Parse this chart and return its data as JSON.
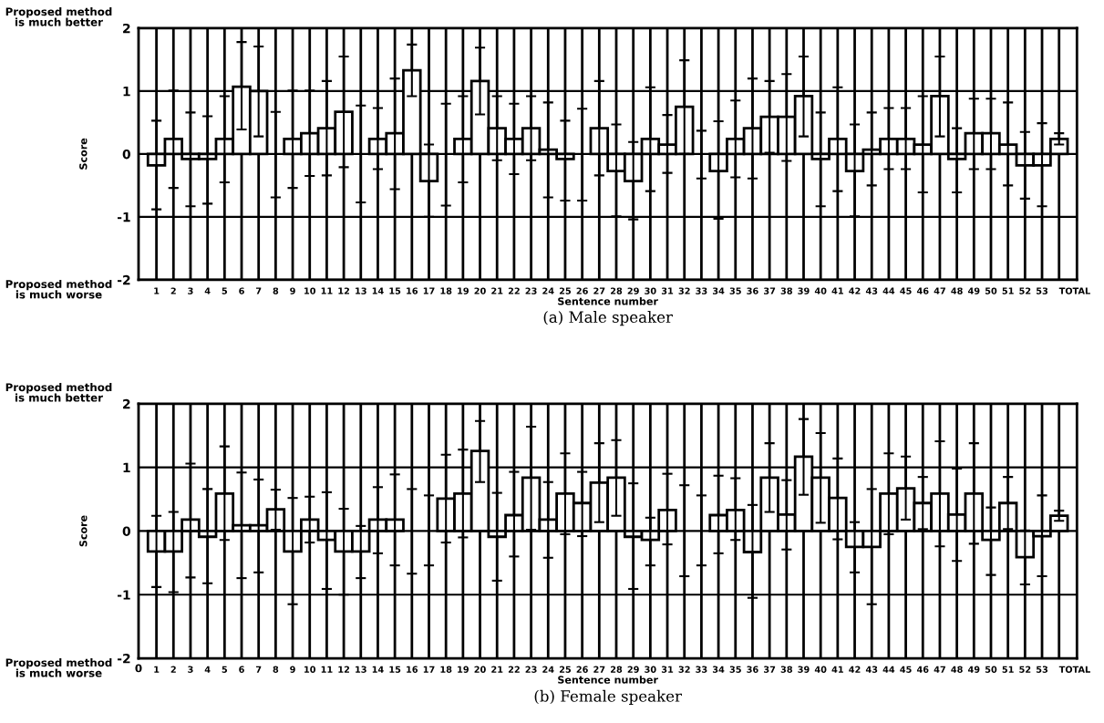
{
  "chart_data": [
    {
      "type": "bar",
      "title": "(a) Male speaker",
      "xlabel": "Sentence number",
      "ylabel": "Score",
      "categories": [
        "1",
        "2",
        "3",
        "4",
        "5",
        "6",
        "7",
        "8",
        "9",
        "10",
        "11",
        "12",
        "13",
        "14",
        "15",
        "16",
        "17",
        "18",
        "19",
        "20",
        "21",
        "22",
        "23",
        "24",
        "25",
        "26",
        "27",
        "28",
        "29",
        "30",
        "31",
        "32",
        "33",
        "34",
        "35",
        "36",
        "37",
        "38",
        "39",
        "40",
        "41",
        "42",
        "43",
        "44",
        "45",
        "46",
        "47",
        "48",
        "49",
        "50",
        "51",
        "52",
        "53",
        "TOTAL"
      ],
      "values": [
        -0.18,
        0.24,
        -0.08,
        -0.08,
        0.24,
        1.07,
        1.0,
        0,
        0.24,
        0.33,
        0.41,
        0.67,
        0,
        0.24,
        0.33,
        1.33,
        -0.43,
        0,
        0.24,
        1.16,
        0.41,
        0.24,
        0.41,
        0.07,
        -0.08,
        0,
        0.41,
        -0.27,
        -0.43,
        0.24,
        0.15,
        0.75,
        0,
        -0.27,
        0.24,
        0.41,
        0.59,
        0.59,
        0.92,
        -0.08,
        0.24,
        -0.27,
        0.07,
        0.24,
        0.24,
        0.15,
        0.92,
        -0.08,
        0.33,
        0.33,
        0.15,
        -0.18,
        -0.18,
        0.24
      ],
      "errors": [
        [
          -0.88,
          0.53
        ],
        [
          -0.54,
          1.01
        ],
        [
          -0.83,
          0.66
        ],
        [
          -0.79,
          0.6
        ],
        [
          -0.45,
          0.92
        ],
        [
          0.39,
          1.78
        ],
        [
          0.28,
          1.71
        ],
        [
          -0.69,
          0.67
        ],
        [
          -0.54,
          1.01
        ],
        [
          -0.35,
          1.01
        ],
        [
          -0.34,
          1.16
        ],
        [
          -0.21,
          1.55
        ],
        [
          -0.77,
          0.77
        ],
        [
          -0.24,
          0.73
        ],
        [
          -0.56,
          1.2
        ],
        [
          0.92,
          1.74
        ],
        [
          -1.0,
          0.15
        ],
        [
          -0.82,
          0.8
        ],
        [
          -0.45,
          0.92
        ],
        [
          0.63,
          1.69
        ],
        [
          -0.1,
          0.92
        ],
        [
          -0.32,
          0.8
        ],
        [
          -0.1,
          0.92
        ],
        [
          -0.69,
          0.82
        ],
        [
          -0.74,
          0.53
        ],
        [
          -0.74,
          0.72
        ],
        [
          -0.34,
          1.16
        ],
        [
          -0.99,
          0.47
        ],
        [
          -1.04,
          0.19
        ],
        [
          -0.59,
          1.06
        ],
        [
          -0.3,
          0.62
        ],
        [
          0.0,
          1.49
        ],
        [
          -0.39,
          0.37
        ],
        [
          -1.03,
          0.52
        ],
        [
          -0.37,
          0.85
        ],
        [
          -0.39,
          1.2
        ],
        [
          0.02,
          1.16
        ],
        [
          -0.11,
          1.27
        ],
        [
          0.28,
          1.55
        ],
        [
          -0.83,
          0.66
        ],
        [
          -0.59,
          1.06
        ],
        [
          -0.99,
          0.47
        ],
        [
          -0.5,
          0.66
        ],
        [
          -0.24,
          0.73
        ],
        [
          -0.24,
          0.73
        ],
        [
          -0.61,
          0.92
        ],
        [
          0.28,
          1.55
        ],
        [
          -0.61,
          0.41
        ],
        [
          -0.24,
          0.88
        ],
        [
          -0.24,
          0.88
        ],
        [
          -0.5,
          0.82
        ],
        [
          -0.71,
          0.35
        ],
        [
          -0.83,
          0.49
        ],
        [
          0.15,
          0.33
        ]
      ],
      "color": "#ffffff",
      "ylim": [
        -2,
        2
      ],
      "yticks": [
        -2,
        -1,
        0,
        1,
        2
      ],
      "grid": true,
      "annotations": [
        "Proposed method\nis much better",
        "Proposed method\nis much worse"
      ]
    },
    {
      "type": "bar",
      "title": "(b) Female speaker",
      "xlabel": "Sentence number",
      "ylabel": "Score",
      "categories": [
        "1",
        "2",
        "3",
        "4",
        "5",
        "6",
        "7",
        "8",
        "9",
        "10",
        "11",
        "12",
        "13",
        "14",
        "15",
        "16",
        "17",
        "18",
        "19",
        "20",
        "21",
        "22",
        "23",
        "24",
        "25",
        "26",
        "27",
        "28",
        "29",
        "30",
        "31",
        "32",
        "33",
        "34",
        "35",
        "36",
        "37",
        "38",
        "39",
        "40",
        "41",
        "42",
        "43",
        "44",
        "45",
        "46",
        "47",
        "48",
        "49",
        "50",
        "51",
        "52",
        "53",
        "TOTAL"
      ],
      "values": [
        -0.32,
        -0.32,
        0.18,
        -0.09,
        0.59,
        0.09,
        0.09,
        0.34,
        -0.32,
        0.18,
        -0.14,
        -0.32,
        -0.32,
        0.18,
        0.18,
        0,
        0,
        0.51,
        0.59,
        1.26,
        -0.09,
        0.25,
        0.84,
        0.18,
        0.59,
        0.44,
        0.76,
        0.84,
        -0.09,
        -0.14,
        0.33,
        0,
        0,
        0.25,
        0.33,
        -0.33,
        0.84,
        0.26,
        1.17,
        0.84,
        0.52,
        -0.25,
        -0.25,
        0.59,
        0.67,
        0.44,
        0.59,
        0.26,
        0.59,
        -0.14,
        0.44,
        -0.41,
        -0.08,
        0.24
      ],
      "errors": [
        [
          -0.88,
          0.24
        ],
        [
          -0.96,
          0.3
        ],
        [
          -0.73,
          1.06
        ],
        [
          -0.82,
          0.66
        ],
        [
          -0.14,
          1.33
        ],
        [
          -0.74,
          0.92
        ],
        [
          -0.65,
          0.81
        ],
        [
          0.02,
          0.65
        ],
        [
          -1.15,
          0.52
        ],
        [
          -0.18,
          0.54
        ],
        [
          -0.91,
          0.61
        ],
        [
          -1.0,
          0.35
        ],
        [
          -0.74,
          0.08
        ],
        [
          -0.35,
          0.69
        ],
        [
          -0.54,
          0.89
        ],
        [
          -0.67,
          0.66
        ],
        [
          -0.54,
          0.56
        ],
        [
          -0.18,
          1.2
        ],
        [
          -0.1,
          1.28
        ],
        [
          0.77,
          1.73
        ],
        [
          -0.78,
          0.6
        ],
        [
          -0.4,
          0.93
        ],
        [
          0.02,
          1.64
        ],
        [
          -0.42,
          0.77
        ],
        [
          -0.05,
          1.22
        ],
        [
          -0.08,
          0.93
        ],
        [
          0.14,
          1.38
        ],
        [
          0.24,
          1.43
        ],
        [
          -0.91,
          0.75
        ],
        [
          -0.54,
          0.21
        ],
        [
          -0.21,
          0.9
        ],
        [
          -0.71,
          0.72
        ],
        [
          -0.54,
          0.56
        ],
        [
          -0.35,
          0.87
        ],
        [
          -0.14,
          0.83
        ],
        [
          -1.05,
          0.41
        ],
        [
          0.3,
          1.38
        ],
        [
          -0.29,
          0.8
        ],
        [
          0.57,
          1.76
        ],
        [
          0.13,
          1.54
        ],
        [
          -0.13,
          1.14
        ],
        [
          -0.65,
          0.14
        ],
        [
          -1.15,
          0.66
        ],
        [
          -0.05,
          1.22
        ],
        [
          0.18,
          1.17
        ],
        [
          0.03,
          0.85
        ],
        [
          -0.24,
          1.41
        ],
        [
          -0.47,
          0.98
        ],
        [
          -0.2,
          1.38
        ],
        [
          -0.69,
          0.37
        ],
        [
          0.03,
          0.85
        ],
        [
          -0.84,
          0.01
        ],
        [
          -0.71,
          0.56
        ],
        [
          0.16,
          0.32
        ]
      ],
      "color": "#ffffff",
      "ylim": [
        -2,
        2
      ],
      "yticks": [
        -2,
        -1,
        0,
        1,
        2
      ],
      "grid": true,
      "annotations": [
        "Proposed method\nis much better",
        "Proposed method\nis much worse",
        "0"
      ]
    }
  ]
}
